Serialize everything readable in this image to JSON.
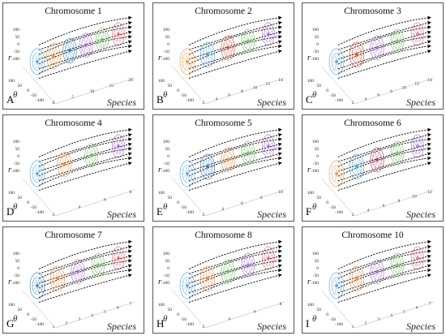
{
  "figure": {
    "axis_labels": {
      "r": "r",
      "theta": "θ",
      "species": "Species"
    },
    "r_ticks": [
      "100",
      "50",
      "0",
      "-50",
      "-100"
    ],
    "theta_ticks": [
      "100",
      "50",
      "0",
      "-50",
      "-100"
    ],
    "panels": [
      {
        "letter": "A",
        "title": "Chromosome 1",
        "species_ticks": [
          "0",
          "5",
          "10",
          "15",
          "20"
        ],
        "clusters": 20,
        "colors": [
          "#4aa3df",
          "#f08c3a",
          "#2a7fbf",
          "#a46ad1",
          "#6cbf5a",
          "#e06a7a"
        ]
      },
      {
        "letter": "B",
        "title": "Chromosome 2",
        "species_ticks": [
          "2",
          "4",
          "6",
          "8",
          "10",
          "12",
          "14"
        ],
        "clusters": 14,
        "colors": [
          "#f08c3a",
          "#4aa3df",
          "#e0472a",
          "#6cbf5a",
          "#a46ad1"
        ]
      },
      {
        "letter": "C",
        "title": "Chromosome 3",
        "species_ticks": [
          "2",
          "4",
          "6",
          "8",
          "10",
          "12",
          "14"
        ],
        "clusters": 14,
        "colors": [
          "#4aa3df",
          "#e0472a",
          "#a46ad1",
          "#6cbf5a",
          "#e06aa0"
        ]
      },
      {
        "letter": "D",
        "title": "Chromosome 4",
        "species_ticks": [
          "2",
          "4",
          "6",
          "8"
        ],
        "clusters": 8,
        "colors": [
          "#4aa3df",
          "#f08c3a",
          "#6cbf5a",
          "#a46ad1"
        ]
      },
      {
        "letter": "E",
        "title": "Chromosome 5",
        "species_ticks": [
          "2",
          "4",
          "6",
          "8",
          "10"
        ],
        "clusters": 10,
        "colors": [
          "#4aa3df",
          "#2a6fbf",
          "#f08c3a",
          "#6cbf5a",
          "#a46ad1"
        ]
      },
      {
        "letter": "F",
        "title": "Chromosome 6",
        "species_ticks": [
          "2",
          "4",
          "6",
          "8",
          "10",
          "12"
        ],
        "clusters": 12,
        "colors": [
          "#f08c3a",
          "#4aa3df",
          "#b0304a",
          "#6cbf5a",
          "#a46ad1"
        ]
      },
      {
        "letter": "G",
        "title": "Chromosome 7",
        "species_ticks": [
          "1",
          "2",
          "3",
          "4",
          "5",
          "6",
          "7"
        ],
        "clusters": 7,
        "colors": [
          "#2a7fbf",
          "#f08c3a",
          "#a46ad1",
          "#6cbf5a",
          "#e06a7a"
        ]
      },
      {
        "letter": "H",
        "title": "Chromosome 8",
        "species_ticks": [
          "2",
          "4",
          "6",
          "8"
        ],
        "clusters": 8,
        "colors": [
          "#4aa3df",
          "#f08c3a",
          "#6cbf5a",
          "#a46ad1",
          "#e06a7a"
        ]
      },
      {
        "letter": "I",
        "title": "Chromosome 10",
        "species_ticks": [
          "1",
          "2",
          "3",
          "4",
          "5",
          "6",
          "7"
        ],
        "clusters": 7,
        "colors": [
          "#4aa3df",
          "#f08c3a",
          "#a46ad1",
          "#6cbf5a",
          "#e06a7a"
        ]
      }
    ]
  }
}
